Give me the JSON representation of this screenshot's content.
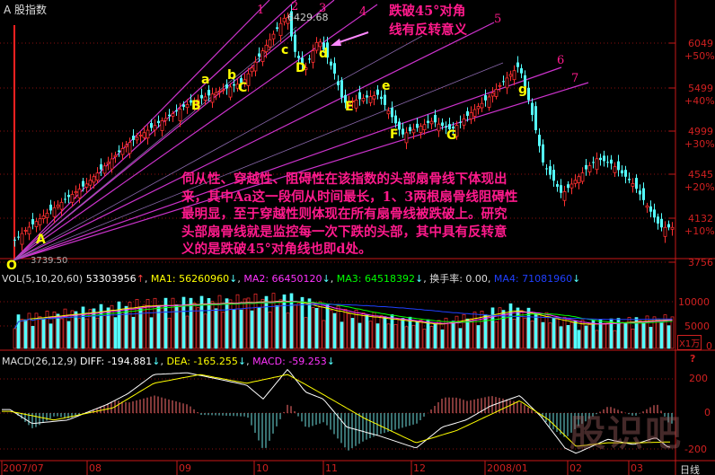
{
  "header": {
    "title": "股指数",
    "title_icon": "A"
  },
  "chart_data": [
    {
      "type": "candlestick",
      "title": "股指数",
      "y_scale": "log",
      "y_ticks": [
        {
          "value": "6049",
          "pct": "+50%"
        },
        {
          "value": "5499",
          "pct": "+40%"
        },
        {
          "value": "4999",
          "pct": "+30%"
        },
        {
          "value": "4545",
          "pct": "+20%"
        },
        {
          "value": "4132",
          "pct": "+10%"
        },
        {
          "value": "3756",
          "pct": ""
        }
      ],
      "ylim": [
        3700,
        6500
      ],
      "high_label": "6429.68",
      "low_label": "3739.50",
      "price_path": [
        [
          "2007-07-04",
          3900
        ],
        [
          "2007-07-11",
          4050
        ],
        [
          "2007-08-01",
          4450
        ],
        [
          "2007-08-15",
          4850
        ],
        [
          "2007-09-06",
          5300
        ],
        [
          "2007-09-27",
          5550
        ],
        [
          "2007-10-16",
          6430
        ],
        [
          "2007-10-19",
          5950
        ],
        [
          "2007-10-24",
          5700
        ],
        [
          "2007-10-30",
          6100
        ],
        [
          "2007-11-05",
          5650
        ],
        [
          "2007-11-08",
          5300
        ],
        [
          "2007-11-20",
          5400
        ],
        [
          "2007-11-28",
          4950
        ],
        [
          "2007-12-10",
          5100
        ],
        [
          "2007-12-18",
          5000
        ],
        [
          "2008-01-02",
          5350
        ],
        [
          "2008-01-14",
          5750
        ],
        [
          "2008-01-17",
          5400
        ],
        [
          "2008-01-23",
          4650
        ],
        [
          "2008-01-30",
          4350
        ],
        [
          "2008-02-15",
          4700
        ],
        [
          "2008-02-22",
          4650
        ],
        [
          "2008-03-03",
          4450
        ],
        [
          "2008-03-14",
          4050
        ]
      ],
      "point_labels": [
        "O",
        "A",
        "B",
        "a",
        "b",
        "C",
        "c",
        "D",
        "d",
        "E",
        "e",
        "F",
        "G",
        "g"
      ],
      "fan_labels": [
        "1",
        "2",
        "3",
        "4",
        "5",
        "6",
        "7"
      ],
      "up_color": "#ff3030",
      "down_color": "#54ffff",
      "fan_color": "#cc33cc"
    },
    {
      "type": "bar",
      "title": "VOL(5,10,20,60)",
      "unit": "X1万",
      "y_ticks": [
        "10000",
        "5000",
        "0"
      ],
      "volume_path": [
        [
          "2007-07-04",
          6000
        ],
        [
          "2007-08-01",
          7500
        ],
        [
          "2007-08-20",
          9000
        ],
        [
          "2007-09-20",
          9500
        ],
        [
          "2007-10-16",
          10000
        ],
        [
          "2007-11-10",
          7000
        ],
        [
          "2007-12-10",
          5000
        ],
        [
          "2008-01-10",
          8000
        ],
        [
          "2008-02-05",
          5000
        ],
        [
          "2008-03-14",
          6000
        ]
      ]
    },
    {
      "type": "line",
      "title": "MACD(26,12,9)",
      "y_ticks": [
        "200",
        "0",
        "-200"
      ],
      "diff": [
        [
          "2007-07-04",
          20
        ],
        [
          "2007-07-12",
          -60
        ],
        [
          "2007-07-25",
          -40
        ],
        [
          "2007-08-08",
          50
        ],
        [
          "2007-08-15",
          110
        ],
        [
          "2007-08-24",
          220
        ],
        [
          "2007-09-05",
          230
        ],
        [
          "2007-09-15",
          200
        ],
        [
          "2007-09-28",
          160
        ],
        [
          "2007-10-05",
          80
        ],
        [
          "2007-10-16",
          250
        ],
        [
          "2007-10-24",
          120
        ],
        [
          "2007-11-01",
          80
        ],
        [
          "2007-11-09",
          -80
        ],
        [
          "2007-11-20",
          -130
        ],
        [
          "2007-12-03",
          -200
        ],
        [
          "2007-12-14",
          -80
        ],
        [
          "2007-12-24",
          -40
        ],
        [
          "2008-01-03",
          40
        ],
        [
          "2008-01-14",
          100
        ],
        [
          "2008-01-22",
          -20
        ],
        [
          "2008-01-31",
          -200
        ],
        [
          "2008-02-05",
          -230
        ],
        [
          "2008-02-20",
          -150
        ],
        [
          "2008-03-03",
          -180
        ],
        [
          "2008-03-12",
          -140
        ],
        [
          "2008-03-17",
          -195
        ]
      ],
      "dea": [
        [
          "2007-07-04",
          10
        ],
        [
          "2007-07-20",
          -40
        ],
        [
          "2007-08-10",
          30
        ],
        [
          "2007-08-24",
          170
        ],
        [
          "2007-09-10",
          220
        ],
        [
          "2007-09-28",
          170
        ],
        [
          "2007-10-16",
          220
        ],
        [
          "2007-10-30",
          120
        ],
        [
          "2007-11-15",
          -30
        ],
        [
          "2007-12-03",
          -170
        ],
        [
          "2007-12-20",
          -100
        ],
        [
          "2008-01-14",
          70
        ],
        [
          "2008-01-25",
          -40
        ],
        [
          "2008-02-05",
          -190
        ],
        [
          "2008-02-20",
          -170
        ],
        [
          "2008-03-05",
          -170
        ],
        [
          "2008-03-17",
          -165
        ]
      ]
    }
  ],
  "date_ticks": [
    "2007/07",
    "08",
    "09",
    "10",
    "11",
    "12",
    "2008/01",
    "02",
    "03"
  ],
  "period_label": "日线",
  "vol_header": {
    "title": "VOL(5,10,20,60)",
    "value": "53303956",
    "ma1": "MA1: 56260960",
    "ma2": "MA2: 66450120",
    "ma3": "MA3: 64518392",
    "turnover": "换手率: 0.00,",
    "ma4": "MA4: 71081960",
    "colors": {
      "ma1": "#ffff00",
      "ma2": "#ff33ff",
      "ma3": "#00ff00",
      "ma4": "#2040ff"
    }
  },
  "macd_header": {
    "title": "MACD(26,12,9)",
    "diff": "DIFF: -194.881",
    "dea": "DEA: -165.255",
    "macd": "MACD: -59.253"
  },
  "annotations": {
    "callout_line1": "跌破45°对角",
    "callout_line2": "线有反转意义",
    "paragraph": [
      "伺从性、穿越性、阻碍性在该指数的头部扇骨线下体现出",
      "来，其中Aa这一段伺从时间最长，1、3两根扇骨线阻碍性",
      "最明显，至于穿越性则体现在所有扇骨线被跌破上。研究",
      "头部扇骨线就是监控每一次下跌的头部，其中具有反转意",
      "义的是跌破45°对角线也即d处。"
    ]
  },
  "watermark": "股识吧"
}
